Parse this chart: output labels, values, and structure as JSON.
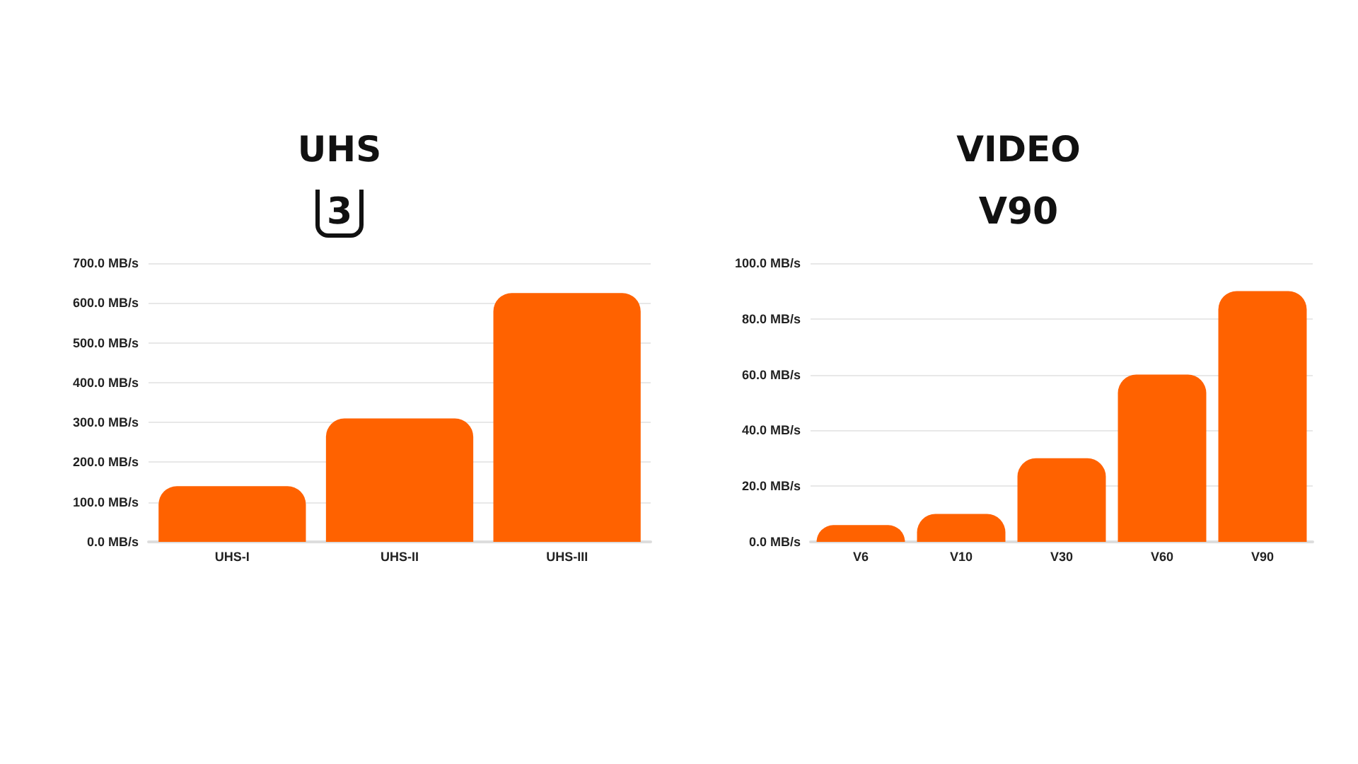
{
  "chart_data": [
    {
      "type": "bar",
      "title": "UHS",
      "subtitle": "3",
      "categories": [
        "UHS-I",
        "UHS-II",
        "UHS-III"
      ],
      "values": [
        140,
        310,
        625
      ],
      "color": "#ff6200",
      "ylim": [
        0,
        700
      ],
      "yticks": [
        {
          "value": 0,
          "label": "0.0 MB/s"
        },
        {
          "value": 100,
          "label": "100.0 MB/s"
        },
        {
          "value": 200,
          "label": "200.0 MB/s"
        },
        {
          "value": 300,
          "label": "300.0 MB/s"
        },
        {
          "value": 400,
          "label": "400.0 MB/s"
        },
        {
          "value": 500,
          "label": "500.0 MB/s"
        },
        {
          "value": 600,
          "label": "600.0 MB/s"
        },
        {
          "value": 700,
          "label": "700.0 MB/s"
        }
      ],
      "grid": "y"
    },
    {
      "type": "bar",
      "title": "VIDEO",
      "subtitle": "V90",
      "categories": [
        "V6",
        "V10",
        "V30",
        "V60",
        "V90"
      ],
      "values": [
        6,
        10,
        30,
        60,
        90
      ],
      "color": "#ff6200",
      "ylim": [
        0,
        100
      ],
      "yticks": [
        {
          "value": 0,
          "label": "0.0 MB/s"
        },
        {
          "value": 20,
          "label": "20.0 MB/s"
        },
        {
          "value": 40,
          "label": "40.0 MB/s"
        },
        {
          "value": 60,
          "label": "60.0 MB/s"
        },
        {
          "value": 80,
          "label": "80.0 MB/s"
        },
        {
          "value": 100,
          "label": "100.0 MB/s"
        }
      ],
      "grid": "y"
    }
  ]
}
